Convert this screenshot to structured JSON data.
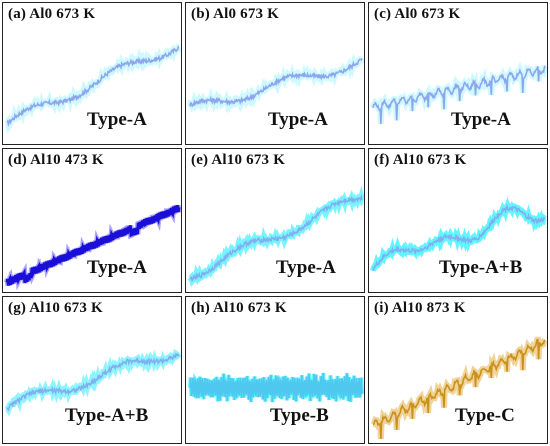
{
  "figure": {
    "panels": [
      {
        "label": "(a)",
        "alloy": "Al0",
        "temp": "673 K",
        "type": "Type-A",
        "color": "#8fa6ee",
        "halo": "#b8f6ff"
      },
      {
        "label": "(b)",
        "alloy": "Al0",
        "temp": "673 K",
        "type": "Type-A",
        "color": "#8fa6ee",
        "halo": "#b8f6ff"
      },
      {
        "label": "(c)",
        "alloy": "Al0",
        "temp": "673 K",
        "type": "Type-A",
        "color": "#8fa6ee",
        "halo": "#b8f6ff"
      },
      {
        "label": "(d)",
        "alloy": "Al10",
        "temp": "473 K",
        "type": "Type-A",
        "color": "#1a0fd8",
        "halo": "#8a7cff"
      },
      {
        "label": "(e)",
        "alloy": "Al10",
        "temp": "673 K",
        "type": "Type-A",
        "color": "#7fb0f0",
        "halo": "#40f0ff"
      },
      {
        "label": "(f)",
        "alloy": "Al10",
        "temp": "673 K",
        "type": "Type-A+B",
        "color": "#7fb0f0",
        "halo": "#20f0ff"
      },
      {
        "label": "(g)",
        "alloy": "Al10",
        "temp": "673 K",
        "type": "Type-A+B",
        "color": "#7fb0f0",
        "halo": "#60f0ff"
      },
      {
        "label": "(h)",
        "alloy": "Al10",
        "temp": "673 K",
        "type": "Type-B",
        "color": "#4fc8ef",
        "halo": "#20f0ff"
      },
      {
        "label": "(i)",
        "alloy": "Al10",
        "temp": "873 K",
        "type": "Type-C",
        "color": "#c9921a",
        "halo": "#e8c070"
      }
    ]
  },
  "chart_data": [
    {
      "type": "line",
      "title": "(a) Al0 673 K",
      "annotation": "Type-A",
      "series": [
        {
          "shape": "serrated rising",
          "y_start": 0.15,
          "y_end": 0.88
        }
      ]
    },
    {
      "type": "line",
      "title": "(b) Al0 673 K",
      "annotation": "Type-A",
      "series": [
        {
          "shape": "serrated rising",
          "y_start": 0.28,
          "y_end": 0.72
        }
      ]
    },
    {
      "type": "line",
      "title": "(c) Al0 673 K",
      "annotation": "Type-A",
      "series": [
        {
          "shape": "serrated rising with drops",
          "y_start": 0.3,
          "y_end": 0.65
        }
      ]
    },
    {
      "type": "line",
      "title": "(d) Al10 473 K",
      "annotation": "Type-A",
      "series": [
        {
          "shape": "regular serrations rising",
          "y_start": 0.05,
          "y_end": 0.72
        }
      ]
    },
    {
      "type": "line",
      "title": "(e) Al10 673 K",
      "annotation": "Type-A",
      "series": [
        {
          "shape": "serrated rising",
          "y_start": 0.12,
          "y_end": 0.82
        }
      ]
    },
    {
      "type": "line",
      "title": "(f) Al10 673 K",
      "annotation": "Type-A+B",
      "series": [
        {
          "shape": "serrated stepped rising",
          "y_start": 0.22,
          "y_end": 0.72
        }
      ]
    },
    {
      "type": "line",
      "title": "(g) Al10 673 K",
      "annotation": "Type-A+B",
      "series": [
        {
          "shape": "serrated rising",
          "y_start": 0.28,
          "y_end": 0.78
        }
      ]
    },
    {
      "type": "line",
      "title": "(h) Al10 673 K",
      "annotation": "Type-B",
      "series": [
        {
          "shape": "dense oscillation flat",
          "y_start": 0.45,
          "y_end": 0.45
        }
      ]
    },
    {
      "type": "line",
      "title": "(i) Al10 873 K",
      "annotation": "Type-C",
      "series": [
        {
          "shape": "rising with downward drops",
          "y_start": 0.12,
          "y_end": 0.86
        }
      ]
    }
  ]
}
